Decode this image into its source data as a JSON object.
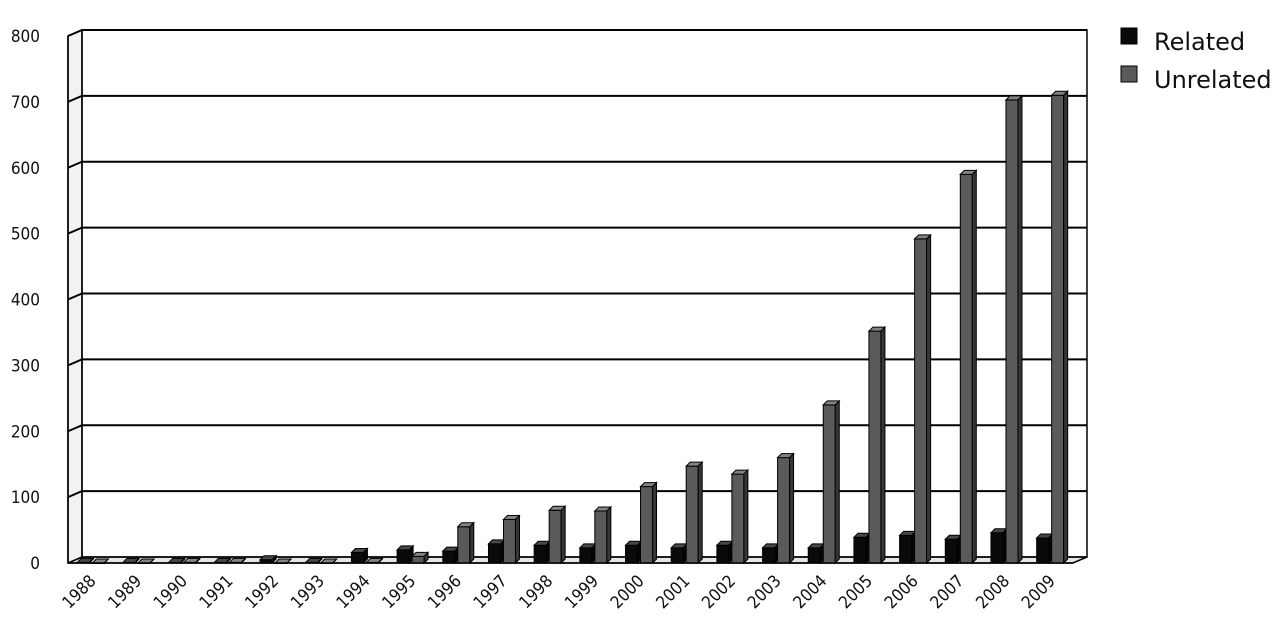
{
  "chart_data": {
    "type": "bar",
    "title": "",
    "xlabel": "",
    "ylabel": "",
    "ylim": [
      0,
      800
    ],
    "yticks": [
      0,
      100,
      200,
      300,
      400,
      500,
      600,
      700,
      800
    ],
    "grid": "horizontal",
    "legend_position": "top-right",
    "categories": [
      "1988",
      "1989",
      "1990",
      "1991",
      "1992",
      "1993",
      "1994",
      "1995",
      "1996",
      "1997",
      "1998",
      "1999",
      "2000",
      "2001",
      "2002",
      "2003",
      "2004",
      "2005",
      "2006",
      "2007",
      "2008",
      "2009"
    ],
    "series": [
      {
        "name": "Related",
        "color": "#0a0a0a",
        "values": [
          1,
          1,
          1,
          1,
          5,
          1,
          16,
          20,
          18,
          29,
          27,
          23,
          27,
          23,
          27,
          23,
          23,
          39,
          42,
          36,
          46,
          38
        ]
      },
      {
        "name": "Unrelated",
        "color": "#5a5a5a",
        "values": [
          0,
          0,
          1,
          1,
          0,
          0,
          1,
          10,
          55,
          66,
          80,
          79,
          116,
          147,
          135,
          160,
          240,
          352,
          492,
          590,
          703,
          710
        ]
      }
    ]
  }
}
